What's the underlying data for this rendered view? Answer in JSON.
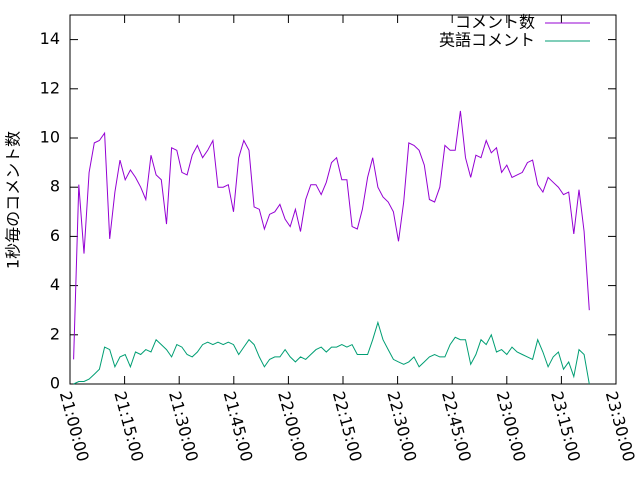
{
  "chart_data": {
    "type": "line",
    "ylabel": "1秒毎のコメント数",
    "x": [
      "21:01:00",
      "21:02:25",
      "21:03:50",
      "21:05:15",
      "21:06:40",
      "21:08:05",
      "21:09:30",
      "21:10:55",
      "21:12:20",
      "21:13:45",
      "21:15:10",
      "21:16:35",
      "21:18:00",
      "21:19:25",
      "21:20:50",
      "21:22:15",
      "21:23:40",
      "21:25:05",
      "21:26:30",
      "21:27:55",
      "21:29:20",
      "21:30:45",
      "21:32:10",
      "21:33:35",
      "21:35:00",
      "21:36:25",
      "21:37:50",
      "21:39:15",
      "21:40:40",
      "21:42:05",
      "21:43:30",
      "21:44:55",
      "21:46:20",
      "21:47:45",
      "21:49:10",
      "21:50:35",
      "21:52:00",
      "21:53:25",
      "21:54:50",
      "21:56:15",
      "21:57:40",
      "21:59:05",
      "22:00:30",
      "22:01:55",
      "22:03:20",
      "22:04:45",
      "22:06:10",
      "22:07:35",
      "22:09:00",
      "22:10:25",
      "22:11:50",
      "22:13:15",
      "22:14:40",
      "22:16:05",
      "22:17:30",
      "22:18:55",
      "22:20:20",
      "22:21:45",
      "22:23:10",
      "22:24:35",
      "22:26:00",
      "22:27:25",
      "22:28:50",
      "22:30:15",
      "22:31:40",
      "22:33:05",
      "22:34:30",
      "22:35:55",
      "22:37:20",
      "22:38:45",
      "22:40:10",
      "22:41:35",
      "22:43:00",
      "22:44:25",
      "22:45:50",
      "22:47:15",
      "22:48:40",
      "22:50:05",
      "22:51:30",
      "22:52:55",
      "22:54:20",
      "22:55:45",
      "22:57:10",
      "22:58:35",
      "23:00:00",
      "23:01:25",
      "23:02:50",
      "23:04:15",
      "23:05:40",
      "23:07:05",
      "23:08:30",
      "23:09:55",
      "23:11:20",
      "23:12:45",
      "23:14:10",
      "23:15:35",
      "23:17:00",
      "23:18:25",
      "23:19:50",
      "23:21:15",
      "23:22:40"
    ],
    "series": [
      {
        "name": "コメント数",
        "color": "#9400d3",
        "values": [
          1.0,
          8.1,
          5.3,
          8.6,
          9.8,
          9.9,
          10.2,
          5.9,
          7.8,
          9.1,
          8.3,
          8.7,
          8.4,
          8.0,
          7.5,
          9.3,
          8.5,
          8.3,
          6.5,
          9.6,
          9.5,
          8.6,
          8.5,
          9.3,
          9.7,
          9.2,
          9.5,
          9.9,
          8.0,
          8.0,
          8.1,
          7.0,
          9.2,
          9.9,
          9.5,
          7.2,
          7.1,
          6.3,
          6.9,
          7.0,
          7.3,
          6.7,
          6.4,
          7.1,
          6.2,
          7.5,
          8.1,
          8.1,
          7.7,
          8.2,
          9.0,
          9.2,
          8.3,
          8.3,
          6.4,
          6.3,
          7.1,
          8.4,
          9.2,
          8.0,
          7.6,
          7.4,
          7.0,
          5.8,
          7.4,
          9.8,
          9.7,
          9.5,
          8.9,
          7.5,
          7.4,
          8.0,
          9.7,
          9.5,
          9.5,
          11.1,
          9.2,
          8.4,
          9.3,
          9.2,
          9.9,
          9.4,
          9.6,
          8.6,
          8.9,
          8.4,
          8.5,
          8.6,
          9.0,
          9.1,
          8.1,
          7.8,
          8.4,
          8.2,
          8.0,
          7.7,
          7.8,
          6.1,
          7.9,
          6.2,
          3.0
        ]
      },
      {
        "name": "英語コメント",
        "color": "#009e73",
        "values": [
          0.0,
          0.1,
          0.1,
          0.2,
          0.4,
          0.6,
          1.5,
          1.4,
          0.7,
          1.1,
          1.2,
          0.7,
          1.3,
          1.2,
          1.4,
          1.3,
          1.8,
          1.6,
          1.4,
          1.1,
          1.6,
          1.5,
          1.2,
          1.1,
          1.3,
          1.6,
          1.7,
          1.6,
          1.7,
          1.6,
          1.7,
          1.6,
          1.2,
          1.5,
          1.8,
          1.6,
          1.1,
          0.7,
          1.0,
          1.1,
          1.1,
          1.4,
          1.1,
          0.9,
          1.1,
          1.0,
          1.2,
          1.4,
          1.5,
          1.3,
          1.5,
          1.5,
          1.6,
          1.5,
          1.6,
          1.2,
          1.2,
          1.2,
          1.8,
          2.5,
          1.8,
          1.4,
          1.0,
          0.9,
          0.8,
          0.9,
          1.1,
          0.7,
          0.9,
          1.1,
          1.2,
          1.1,
          1.1,
          1.6,
          1.9,
          1.8,
          1.8,
          0.8,
          1.2,
          1.8,
          1.6,
          2.0,
          1.3,
          1.4,
          1.2,
          1.5,
          1.3,
          1.2,
          1.1,
          1.0,
          1.8,
          1.3,
          0.7,
          1.1,
          1.3,
          0.6,
          0.9,
          0.3,
          1.4,
          1.2,
          0.0
        ]
      }
    ],
    "xlim": [
      "21:00:00",
      "23:30:00"
    ],
    "xticks": [
      "21:00:00",
      "21:15:00",
      "21:30:00",
      "21:45:00",
      "22:00:00",
      "22:15:00",
      "22:30:00",
      "22:45:00",
      "23:00:00",
      "23:15:00",
      "23:30:00"
    ],
    "ylim": [
      0,
      15
    ],
    "yticks": [
      0,
      2,
      4,
      6,
      8,
      10,
      12,
      14
    ],
    "grid": false,
    "legend": "top-right"
  }
}
